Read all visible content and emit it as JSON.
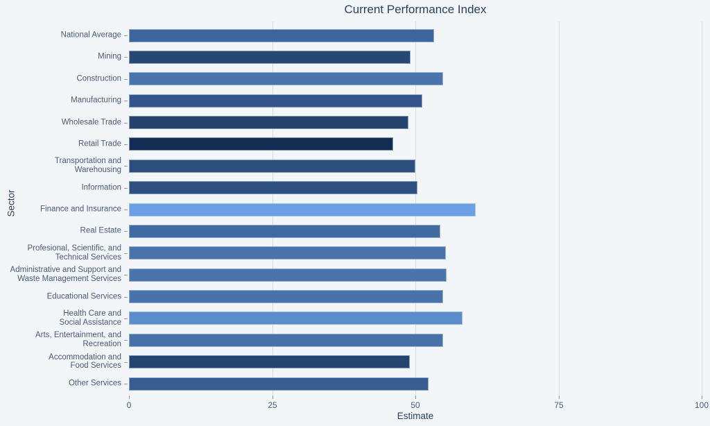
{
  "window": {
    "background_color": "#f3f6f8"
  },
  "chart_data": {
    "type": "bar",
    "orientation": "horizontal",
    "title": "Current Performance Index",
    "xlabel": "Estimate",
    "ylabel": "Sector",
    "xlim": [
      0,
      100
    ],
    "x_ticks": [
      0,
      25,
      50,
      75,
      100
    ],
    "grid": true,
    "legend": "none",
    "categories": [
      "National Average",
      "Mining",
      "Construction",
      "Manufacturing",
      "Wholesale Trade",
      "Retail Trade",
      "Transportation and\nWarehousing",
      "Information",
      "Finance and Insurance",
      "Real Estate",
      "Profesional, Scientific, and\nTechnical Services",
      "Administrative and Support and\nWaste Management Services",
      "Educational Services",
      "Health Care and\nSocial Assistance",
      "Arts, Entertainment, and\nRecreation",
      "Accommodation and\nFood Services",
      "Other Services"
    ],
    "values": [
      53.3,
      49.2,
      54.8,
      51.2,
      48.8,
      46.1,
      50.0,
      50.4,
      60.5,
      54.3,
      55.3,
      55.4,
      54.9,
      58.2,
      54.8,
      49.0,
      52.3
    ],
    "bar_colors": [
      "#3e659c",
      "#264872",
      "#4a74ac",
      "#33558b",
      "#24436d",
      "#142b52",
      "#2b4e7c",
      "#2d507f",
      "#6ba0e4",
      "#426aa0",
      "#4a73aa",
      "#4b74ab",
      "#4872a9",
      "#5c8dcb",
      "#4871a8",
      "#254571",
      "#395d91"
    ],
    "colors": {
      "background": "#f3f6f8",
      "gridline": "#d3dfe8",
      "title_text": "#2a3f5f",
      "tick_text": "#4a5a78"
    }
  }
}
